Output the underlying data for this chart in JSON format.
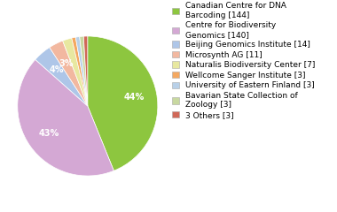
{
  "labels": [
    "Canadian Centre for DNA\nBarcoding [144]",
    "Centre for Biodiversity\nGenomics [140]",
    "Beijing Genomics Institute [14]",
    "Microsynth AG [11]",
    "Naturalis Biodiversity Center [7]",
    "Wellcome Sanger Institute [3]",
    "University of Eastern Finland [3]",
    "Bavarian State Collection of\nZoology [3]",
    "3 Others [3]"
  ],
  "values": [
    144,
    140,
    14,
    11,
    7,
    3,
    3,
    3,
    3
  ],
  "colors": [
    "#8DC63F",
    "#D4A8D4",
    "#AEC6E8",
    "#F2B8A0",
    "#E8E8A0",
    "#F4A860",
    "#B8D0E8",
    "#C8D8A0",
    "#D06858"
  ],
  "pct_threshold": 2.5,
  "legend_fontsize": 6.5,
  "figsize": [
    3.8,
    2.4
  ],
  "dpi": 100
}
